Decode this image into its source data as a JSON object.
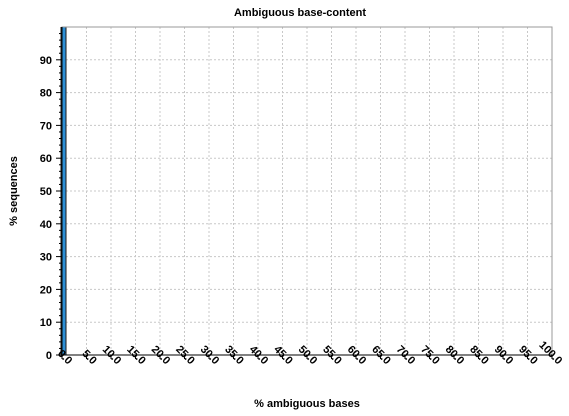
{
  "chart_data": {
    "type": "area",
    "title": "Ambiguous base-content",
    "xlabel": "% ambiguous bases",
    "ylabel": "% sequences",
    "xlim": [
      0,
      100
    ],
    "ylim": [
      0,
      100
    ],
    "x_ticks": [
      "0.0",
      "5.0",
      "10.0",
      "15.0",
      "20.0",
      "25.0",
      "30.0",
      "35.0",
      "40.0",
      "45.0",
      "50.0",
      "55.0",
      "60.0",
      "65.0",
      "70.0",
      "75.0",
      "80.0",
      "85.0",
      "90.0",
      "95.0",
      "100.0"
    ],
    "y_ticks": [
      "0",
      "10",
      "20",
      "30",
      "40",
      "50",
      "60",
      "70",
      "80",
      "90"
    ],
    "grid": true,
    "series": [
      {
        "x": [
          0.0
        ],
        "values": [
          100
        ],
        "color": "#2d8fd5",
        "edge_color": "#1a1a1a"
      }
    ]
  }
}
